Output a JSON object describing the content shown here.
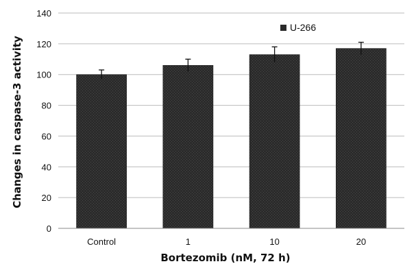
{
  "chart_data": {
    "type": "bar",
    "categories": [
      "Control",
      "1",
      "10",
      "20"
    ],
    "series": [
      {
        "name": "U-266",
        "values": [
          100,
          106,
          113,
          117
        ],
        "errors": [
          3,
          4,
          5,
          4
        ]
      }
    ],
    "xlabel": "Bortezomib (nM, 72 h)",
    "ylabel": "Changes in caspase-3 activity",
    "ylim": [
      0,
      140
    ],
    "yticks": [
      0,
      20,
      40,
      60,
      80,
      100,
      120,
      140
    ],
    "grid": "horizontal",
    "legend": "top-right",
    "bar_color": "#2a2a2a",
    "grid_color": "#bbbbbb"
  }
}
